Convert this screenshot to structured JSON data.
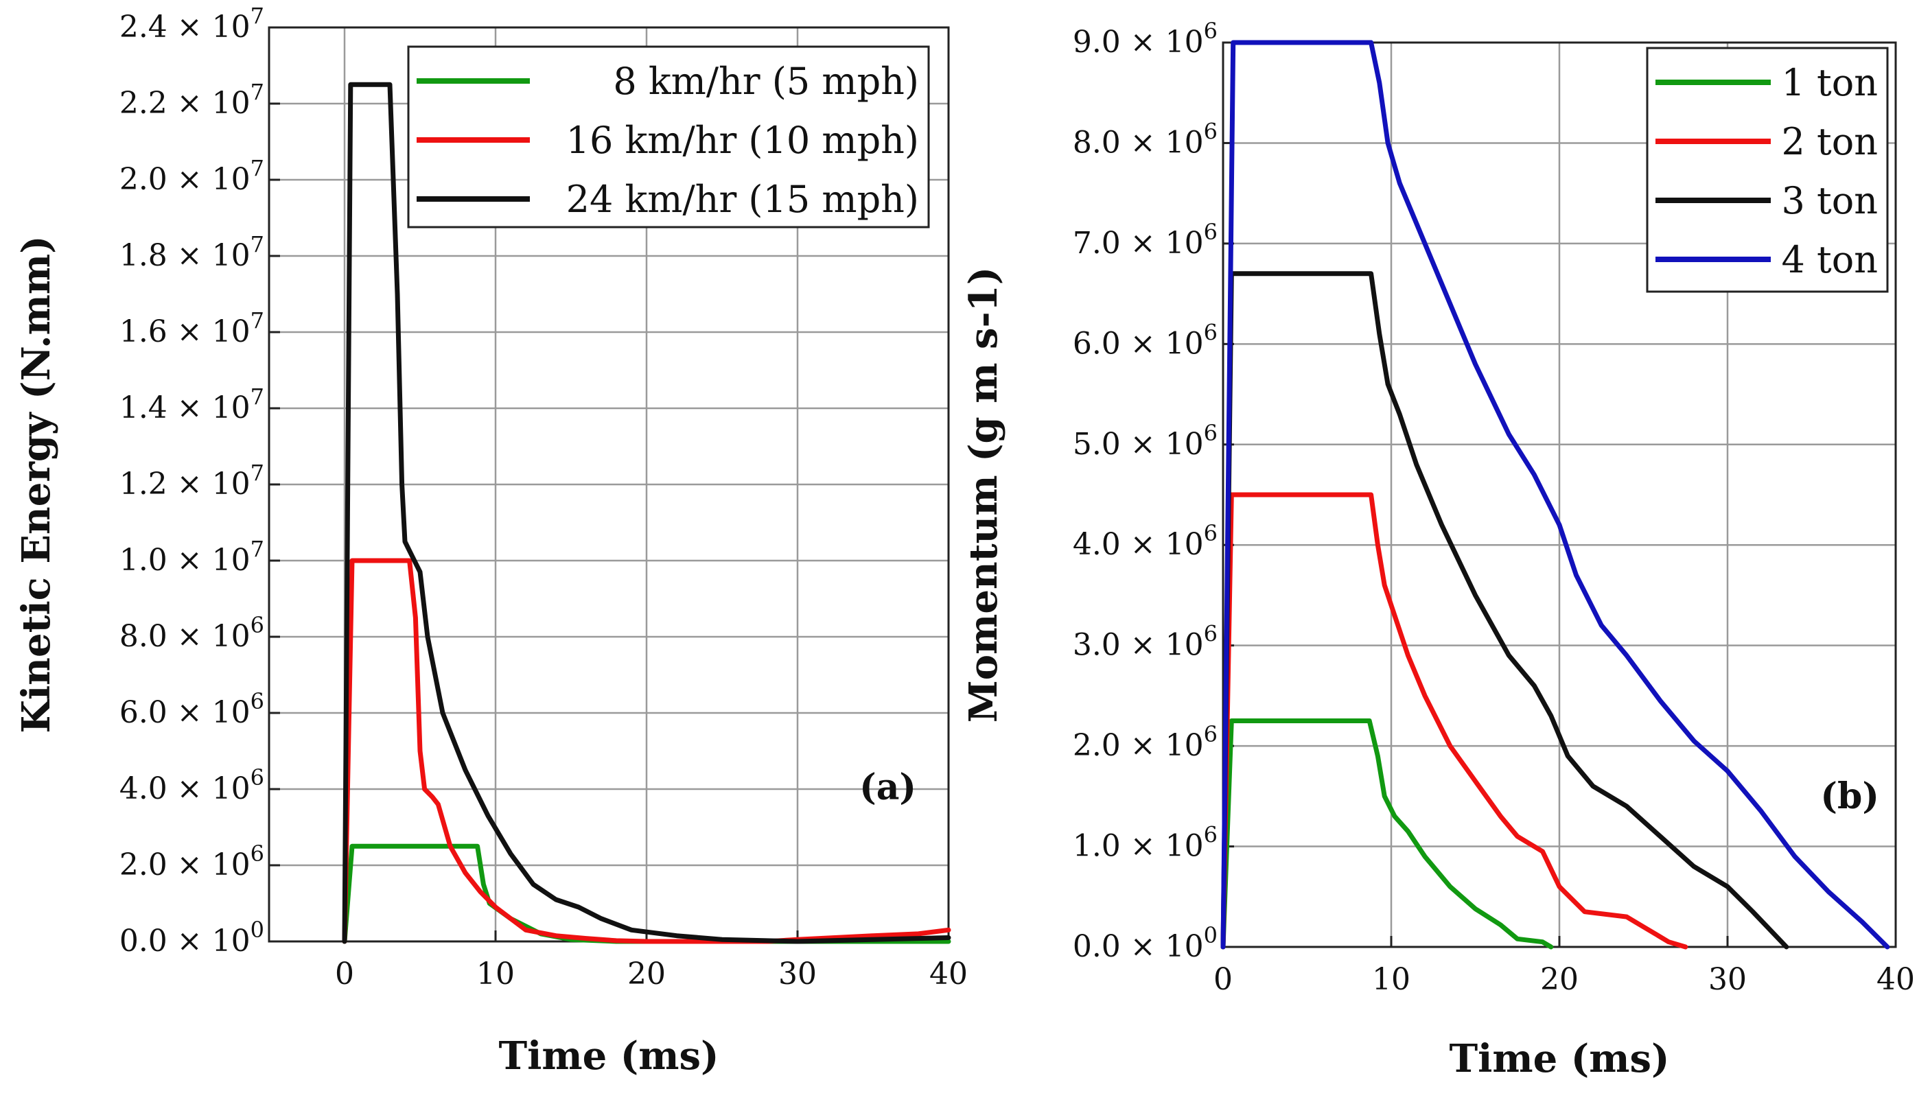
{
  "chart_data": [
    {
      "panel": "a",
      "panel_label": "(a)",
      "type": "line",
      "title": "",
      "xlabel": "Time (ms)",
      "ylabel": "Kinetic Energy (N.mm)",
      "xlim": [
        -5,
        40
      ],
      "ylim": [
        0,
        24000000
      ],
      "x_ticks": [
        0,
        10,
        20,
        30,
        40
      ],
      "x_tick_labels": [
        "0",
        "10",
        "20",
        "30",
        "40"
      ],
      "y_ticks": [
        0,
        2000000,
        4000000,
        6000000,
        8000000,
        10000000,
        12000000,
        14000000,
        16000000,
        18000000,
        20000000,
        22000000,
        24000000
      ],
      "y_tick_labels": [
        {
          "mantissa": "0.0",
          "exponent": "0"
        },
        {
          "mantissa": "2.0",
          "exponent": "6"
        },
        {
          "mantissa": "4.0",
          "exponent": "6"
        },
        {
          "mantissa": "6.0",
          "exponent": "6"
        },
        {
          "mantissa": "8.0",
          "exponent": "6"
        },
        {
          "mantissa": "1.0",
          "exponent": "7"
        },
        {
          "mantissa": "1.2",
          "exponent": "7"
        },
        {
          "mantissa": "1.4",
          "exponent": "7"
        },
        {
          "mantissa": "1.6",
          "exponent": "7"
        },
        {
          "mantissa": "1.8",
          "exponent": "7"
        },
        {
          "mantissa": "2.0",
          "exponent": "7"
        },
        {
          "mantissa": "2.2",
          "exponent": "7"
        },
        {
          "mantissa": "2.4",
          "exponent": "7"
        }
      ],
      "grid": true,
      "legend_position": "top-right",
      "series": [
        {
          "name": "8 km/hr (5 mph)",
          "color": "#119911",
          "points": [
            [
              0,
              0
            ],
            [
              0.5,
              2500000
            ],
            [
              8.8,
              2500000
            ],
            [
              9.2,
              1500000
            ],
            [
              9.6,
              1000000
            ],
            [
              11,
              600000
            ],
            [
              13,
              200000
            ],
            [
              15,
              50000
            ],
            [
              18,
              0
            ],
            [
              40,
              0
            ]
          ]
        },
        {
          "name": "16 km/hr (10 mph)",
          "color": "#ee1111",
          "points": [
            [
              0,
              0
            ],
            [
              0.5,
              10000000
            ],
            [
              4.3,
              10000000
            ],
            [
              4.7,
              8500000
            ],
            [
              5.0,
              5000000
            ],
            [
              5.3,
              4000000
            ],
            [
              5.8,
              3800000
            ],
            [
              6.2,
              3600000
            ],
            [
              7,
              2500000
            ],
            [
              8,
              1800000
            ],
            [
              9,
              1300000
            ],
            [
              10,
              900000
            ],
            [
              11,
              600000
            ],
            [
              12,
              300000
            ],
            [
              14,
              150000
            ],
            [
              16,
              80000
            ],
            [
              18,
              20000
            ],
            [
              20,
              0
            ],
            [
              28,
              0
            ],
            [
              30,
              50000
            ],
            [
              35,
              150000
            ],
            [
              38,
              200000
            ],
            [
              40,
              300000
            ]
          ]
        },
        {
          "name": "24 km/hr (15 mph)",
          "color": "#111111",
          "points": [
            [
              0,
              0
            ],
            [
              0.4,
              22500000
            ],
            [
              3.0,
              22500000
            ],
            [
              3.5,
              17000000
            ],
            [
              3.8,
              12000000
            ],
            [
              4.0,
              10500000
            ],
            [
              4.5,
              10100000
            ],
            [
              5.0,
              9700000
            ],
            [
              5.5,
              8000000
            ],
            [
              6.5,
              6000000
            ],
            [
              8,
              4500000
            ],
            [
              9.5,
              3300000
            ],
            [
              11,
              2300000
            ],
            [
              12.5,
              1500000
            ],
            [
              14,
              1100000
            ],
            [
              15.5,
              900000
            ],
            [
              17,
              600000
            ],
            [
              19,
              300000
            ],
            [
              22,
              150000
            ],
            [
              25,
              50000
            ],
            [
              28,
              20000
            ],
            [
              30,
              0
            ],
            [
              35,
              50000
            ],
            [
              40,
              100000
            ]
          ]
        }
      ]
    },
    {
      "panel": "b",
      "panel_label": "(b)",
      "type": "line",
      "title": "",
      "xlabel": "Time (ms)",
      "ylabel": "Momentum (g m s-1)",
      "xlim": [
        0,
        40
      ],
      "ylim": [
        0,
        9000000
      ],
      "x_ticks": [
        0,
        10,
        20,
        30,
        40
      ],
      "x_tick_labels": [
        "0",
        "10",
        "20",
        "30",
        "40"
      ],
      "y_ticks": [
        0,
        1000000,
        2000000,
        3000000,
        4000000,
        5000000,
        6000000,
        7000000,
        8000000,
        9000000
      ],
      "y_tick_labels": [
        {
          "mantissa": "0.0",
          "exponent": "0"
        },
        {
          "mantissa": "1.0",
          "exponent": "6"
        },
        {
          "mantissa": "2.0",
          "exponent": "6"
        },
        {
          "mantissa": "3.0",
          "exponent": "6"
        },
        {
          "mantissa": "4.0",
          "exponent": "6"
        },
        {
          "mantissa": "5.0",
          "exponent": "6"
        },
        {
          "mantissa": "6.0",
          "exponent": "6"
        },
        {
          "mantissa": "7.0",
          "exponent": "6"
        },
        {
          "mantissa": "8.0",
          "exponent": "6"
        },
        {
          "mantissa": "9.0",
          "exponent": "6"
        }
      ],
      "grid": true,
      "legend_position": "top-right",
      "series": [
        {
          "name": "1 ton",
          "color": "#119911",
          "points": [
            [
              0,
              0
            ],
            [
              0.5,
              2250000
            ],
            [
              8.7,
              2250000
            ],
            [
              9.2,
              1900000
            ],
            [
              9.6,
              1500000
            ],
            [
              10.2,
              1300000
            ],
            [
              11,
              1150000
            ],
            [
              12,
              900000
            ],
            [
              13.5,
              600000
            ],
            [
              15,
              380000
            ],
            [
              16.5,
              220000
            ],
            [
              17.5,
              80000
            ],
            [
              19,
              50000
            ],
            [
              19.5,
              0
            ]
          ]
        },
        {
          "name": "2 ton",
          "color": "#ee1111",
          "points": [
            [
              0,
              0
            ],
            [
              0.5,
              4500000
            ],
            [
              8.8,
              4500000
            ],
            [
              9.2,
              4000000
            ],
            [
              9.6,
              3600000
            ],
            [
              10.2,
              3300000
            ],
            [
              11,
              2900000
            ],
            [
              12,
              2500000
            ],
            [
              13.5,
              2000000
            ],
            [
              15,
              1650000
            ],
            [
              16.5,
              1300000
            ],
            [
              17.5,
              1100000
            ],
            [
              19,
              950000
            ],
            [
              20,
              600000
            ],
            [
              21.5,
              350000
            ],
            [
              24,
              300000
            ],
            [
              25,
              200000
            ],
            [
              26.5,
              50000
            ],
            [
              27.5,
              0
            ]
          ]
        },
        {
          "name": "3 ton",
          "color": "#111111",
          "points": [
            [
              0,
              0
            ],
            [
              0.5,
              6700000
            ],
            [
              8.8,
              6700000
            ],
            [
              9.3,
              6100000
            ],
            [
              9.8,
              5600000
            ],
            [
              10.5,
              5300000
            ],
            [
              11.5,
              4800000
            ],
            [
              13,
              4200000
            ],
            [
              15,
              3500000
            ],
            [
              17,
              2900000
            ],
            [
              18.5,
              2600000
            ],
            [
              19.5,
              2300000
            ],
            [
              20.5,
              1900000
            ],
            [
              22,
              1600000
            ],
            [
              24,
              1400000
            ],
            [
              26,
              1100000
            ],
            [
              28,
              800000
            ],
            [
              30,
              600000
            ],
            [
              31.5,
              350000
            ],
            [
              33.5,
              0
            ]
          ]
        },
        {
          "name": "4 ton",
          "color": "#1111bb",
          "points": [
            [
              0,
              0
            ],
            [
              0.6,
              9000000
            ],
            [
              8.8,
              9000000
            ],
            [
              9.3,
              8600000
            ],
            [
              9.8,
              8000000
            ],
            [
              10.5,
              7600000
            ],
            [
              11.5,
              7200000
            ],
            [
              13,
              6600000
            ],
            [
              15,
              5800000
            ],
            [
              17,
              5100000
            ],
            [
              18.5,
              4700000
            ],
            [
              20,
              4200000
            ],
            [
              21,
              3700000
            ],
            [
              22.5,
              3200000
            ],
            [
              24,
              2900000
            ],
            [
              26,
              2450000
            ],
            [
              28,
              2050000
            ],
            [
              30,
              1750000
            ],
            [
              32,
              1350000
            ],
            [
              34,
              900000
            ],
            [
              36,
              550000
            ],
            [
              38,
              250000
            ],
            [
              39.5,
              0
            ]
          ]
        }
      ]
    }
  ]
}
